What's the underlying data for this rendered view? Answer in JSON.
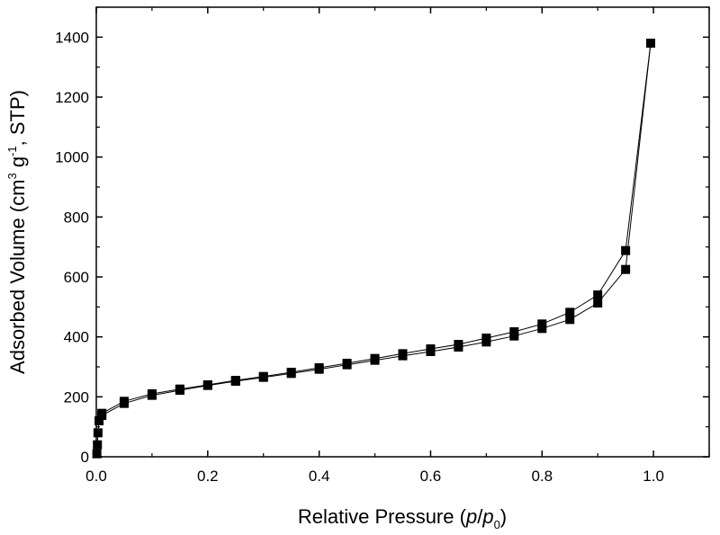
{
  "chart_data": {
    "type": "scatter",
    "title": "",
    "xlabel": {
      "text": "Relative Pressure (",
      "italic1": "p",
      "slash": "/",
      "italic2": "p",
      "subscript": "0",
      "close": ")"
    },
    "ylabel": {
      "part1": "Adsorbed Volume (cm",
      "sup1": "3",
      "part2": " g",
      "sup2": "-1",
      "part3": ", STP)"
    },
    "xlim": [
      0.0,
      1.1
    ],
    "ylim": [
      0,
      1500
    ],
    "x_ticks": [
      {
        "value": 0.0,
        "label": "0.0"
      },
      {
        "value": 0.2,
        "label": "0.2"
      },
      {
        "value": 0.4,
        "label": "0.4"
      },
      {
        "value": 0.6,
        "label": "0.6"
      },
      {
        "value": 0.8,
        "label": "0.8"
      },
      {
        "value": 1.0,
        "label": "1.0"
      }
    ],
    "y_ticks": [
      {
        "value": 0,
        "label": "0"
      },
      {
        "value": 200,
        "label": "200"
      },
      {
        "value": 400,
        "label": "400"
      },
      {
        "value": 600,
        "label": "600"
      },
      {
        "value": 800,
        "label": "800"
      },
      {
        "value": 1000,
        "label": "1000"
      },
      {
        "value": 1200,
        "label": "1200"
      },
      {
        "value": 1400,
        "label": "1400"
      }
    ],
    "grid": false,
    "marker": "square",
    "color": "#000000",
    "series": [
      {
        "x": [
          0.001,
          0.002,
          0.003,
          0.005,
          0.01,
          0.05,
          0.1,
          0.15,
          0.2,
          0.25,
          0.3,
          0.35,
          0.4,
          0.45,
          0.5,
          0.55,
          0.6,
          0.65,
          0.7,
          0.75,
          0.8,
          0.85,
          0.9,
          0.95,
          0.995
        ],
        "y": [
          10,
          40,
          80,
          120,
          138,
          178,
          205,
          222,
          238,
          252,
          265,
          278,
          292,
          307,
          322,
          337,
          351,
          366,
          383,
          403,
          428,
          458,
          513,
          625,
          1380
        ]
      },
      {
        "x": [
          0.995,
          0.95,
          0.9,
          0.85,
          0.8,
          0.75,
          0.7,
          0.65,
          0.6,
          0.55,
          0.5,
          0.45,
          0.4,
          0.35,
          0.3,
          0.25,
          0.2,
          0.15,
          0.1,
          0.05,
          0.01
        ],
        "y": [
          1380,
          688,
          540,
          482,
          443,
          417,
          396,
          375,
          360,
          344,
          328,
          312,
          297,
          282,
          268,
          255,
          240,
          226,
          210,
          185,
          145
        ]
      }
    ]
  }
}
